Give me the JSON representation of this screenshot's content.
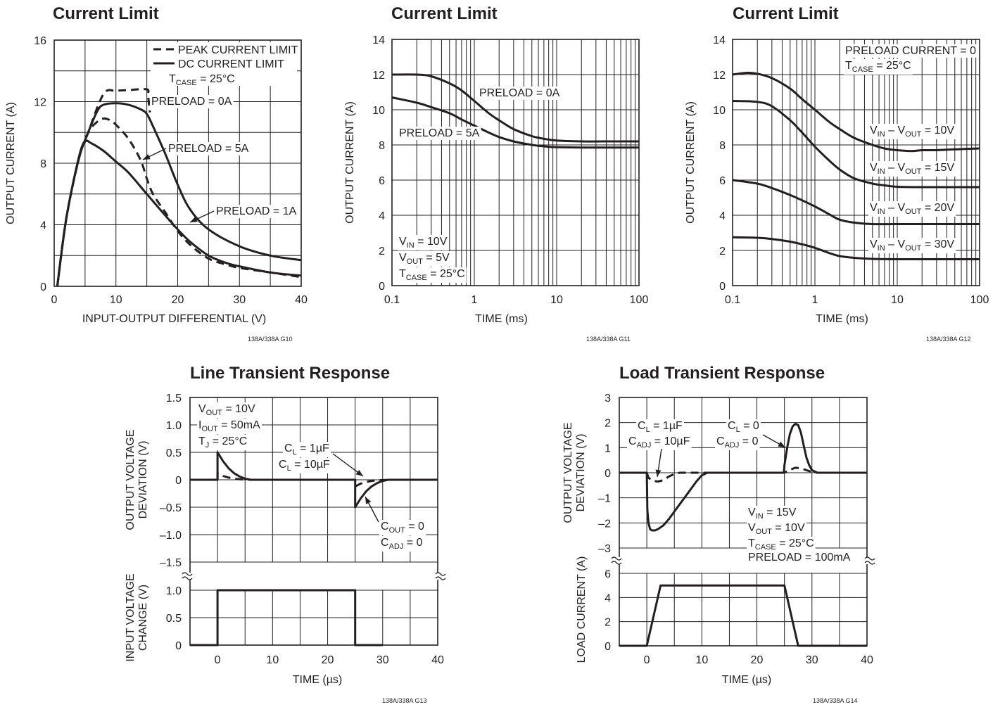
{
  "chart_data": [
    {
      "id": "g10",
      "type": "line",
      "title": "Current Limit",
      "xlabel": "INPUT-OUTPUT DIFFERENTIAL (V)",
      "ylabel": "OUTPUT CURRENT (A)",
      "xlim": [
        0,
        40
      ],
      "ylim": [
        0,
        16
      ],
      "xticks": [
        0,
        10,
        20,
        30,
        40
      ],
      "yticks": [
        0,
        4,
        8,
        12,
        16
      ],
      "x_grid_step": 5,
      "y_grid_step": 2,
      "legend": [
        {
          "label": "PEAK CURRENT LIMIT",
          "style": "dashed"
        },
        {
          "label": "DC CURRENT LIMIT",
          "style": "solid"
        }
      ],
      "annotations": [
        {
          "base": "T",
          "sub": "CASE",
          "tail": " = 25°C"
        },
        {
          "text": "PRELOAD = 0A"
        },
        {
          "text": "PRELOAD = 5A"
        },
        {
          "text": "PRELOAD = 1A"
        }
      ],
      "series": [
        {
          "style": "dashed",
          "x": [
            0.5,
            2,
            4,
            5.5,
            8,
            10,
            12,
            15,
            15.2,
            15.5
          ],
          "y": [
            0,
            4.5,
            8.3,
            10,
            12.5,
            12.7,
            12.75,
            12.8,
            12.4,
            11.3
          ]
        },
        {
          "style": "solid",
          "x": [
            0.5,
            2,
            4,
            5.5,
            7,
            8,
            10,
            12,
            14,
            15,
            16,
            18,
            20,
            22,
            25,
            30,
            35,
            40
          ],
          "y": [
            0,
            4.5,
            8.3,
            10,
            11.4,
            11.8,
            11.9,
            11.8,
            11.5,
            11.2,
            10.4,
            8.6,
            6.6,
            5.0,
            3.7,
            2.6,
            2.0,
            1.7
          ]
        },
        {
          "style": "dashed",
          "x": [
            0.5,
            2,
            4,
            5.5,
            7,
            8,
            9,
            10,
            12,
            14,
            15,
            16,
            18,
            20,
            22,
            25,
            28,
            30,
            35,
            40
          ],
          "y": [
            0,
            4.5,
            8.3,
            10,
            10.7,
            10.9,
            10.8,
            10.5,
            9.6,
            8.2,
            7.0,
            6.0,
            4.8,
            3.6,
            2.7,
            1.8,
            1.4,
            1.2,
            0.9,
            0.6
          ]
        },
        {
          "style": "solid",
          "x": [
            0.5,
            2,
            4,
            5,
            6,
            8,
            10,
            12,
            15,
            18,
            20,
            22,
            25,
            28,
            30,
            35,
            40
          ],
          "y": [
            0,
            4.5,
            8.4,
            9.4,
            9.3,
            8.8,
            8.1,
            7.4,
            6.0,
            4.6,
            3.7,
            2.9,
            2.0,
            1.5,
            1.3,
            0.9,
            0.7
          ]
        }
      ],
      "code": "138A/338A G10"
    },
    {
      "id": "g11",
      "type": "line",
      "title": "Current Limit",
      "xlabel": "TIME (ms)",
      "ylabel": "OUTPUT CURRENT (A)",
      "xscale": "log",
      "xlim": [
        0.1,
        100
      ],
      "ylim": [
        0,
        14
      ],
      "xticks": [
        0.1,
        1,
        10,
        100
      ],
      "yticks": [
        0,
        2,
        4,
        6,
        8,
        10,
        12,
        14
      ],
      "annotations": [
        {
          "text": "PRELOAD = 0A"
        },
        {
          "text": "PRELOAD = 5A"
        },
        {
          "base": "V",
          "sub": "IN",
          "tail": " = 10V"
        },
        {
          "base": "V",
          "sub": "OUT",
          "tail": " = 5V"
        },
        {
          "base": "T",
          "sub": "CASE",
          "tail": " = 25°C"
        }
      ],
      "series": [
        {
          "label": "PRELOAD = 0A",
          "x": [
            0.1,
            0.2,
            0.3,
            0.5,
            0.7,
            1,
            1.5,
            2,
            3,
            5,
            7,
            10,
            20,
            50,
            100
          ],
          "y": [
            12,
            12,
            11.9,
            11.5,
            11.1,
            10.5,
            9.8,
            9.4,
            8.9,
            8.5,
            8.35,
            8.25,
            8.2,
            8.2,
            8.2
          ]
        },
        {
          "label": "PRELOAD = 5A",
          "x": [
            0.1,
            0.2,
            0.3,
            0.5,
            0.7,
            1,
            1.5,
            2,
            3,
            5,
            7,
            10,
            20,
            50,
            100
          ],
          "y": [
            10.7,
            10.4,
            10.15,
            9.8,
            9.45,
            9.1,
            8.7,
            8.45,
            8.2,
            8.0,
            7.92,
            7.87,
            7.85,
            7.85,
            7.85
          ]
        }
      ],
      "code": "138A/338A G11"
    },
    {
      "id": "g12",
      "type": "line",
      "title": "Current Limit",
      "xlabel": "TIME (ms)",
      "ylabel": "OUTPUT CURRENT (A)",
      "xscale": "log",
      "xlim": [
        0.1,
        100
      ],
      "ylim": [
        0,
        14
      ],
      "xticks": [
        0.1,
        1,
        10,
        100
      ],
      "yticks": [
        0,
        2,
        4,
        6,
        8,
        10,
        12,
        14
      ],
      "annotations": [
        {
          "text": "PRELOAD CURRENT = 0"
        },
        {
          "base": "T",
          "sub": "CASE",
          "tail": " = 25°C"
        }
      ],
      "series": [
        {
          "name": {
            "base": "V",
            "sub": "IN",
            "mid": " – V",
            "sub2": "OUT",
            "tail": " = 10V"
          },
          "x": [
            0.1,
            0.15,
            0.2,
            0.3,
            0.5,
            0.7,
            1,
            1.5,
            2,
            3,
            5,
            7,
            10,
            15,
            20,
            30,
            50,
            100
          ],
          "y": [
            12.0,
            12.1,
            12.05,
            11.8,
            11.2,
            10.6,
            10.0,
            9.3,
            8.9,
            8.4,
            8.0,
            7.8,
            7.7,
            7.65,
            7.7,
            7.7,
            7.75,
            7.8
          ]
        },
        {
          "name": {
            "base": "V",
            "sub": "IN",
            "mid": " – V",
            "sub2": "OUT",
            "tail": " = 15V"
          },
          "x": [
            0.1,
            0.2,
            0.3,
            0.5,
            0.7,
            1,
            1.5,
            2,
            3,
            5,
            7,
            10,
            20,
            50,
            100
          ],
          "y": [
            10.5,
            10.45,
            10.2,
            9.4,
            8.7,
            7.9,
            7.1,
            6.6,
            6.1,
            5.8,
            5.7,
            5.62,
            5.6,
            5.6,
            5.6
          ]
        },
        {
          "name": {
            "base": "V",
            "sub": "IN",
            "mid": " – V",
            "sub2": "OUT",
            "tail": " = 20V"
          },
          "x": [
            0.1,
            0.2,
            0.3,
            0.5,
            0.7,
            1,
            1.5,
            2,
            3,
            5,
            10,
            20,
            50,
            100
          ],
          "y": [
            6.0,
            5.8,
            5.55,
            5.15,
            4.85,
            4.5,
            4.05,
            3.75,
            3.58,
            3.5,
            3.5,
            3.5,
            3.5,
            3.5
          ]
        },
        {
          "name": {
            "base": "V",
            "sub": "IN",
            "mid": " – V",
            "sub2": "OUT",
            "tail": " = 30V"
          },
          "x": [
            0.1,
            0.2,
            0.3,
            0.5,
            0.7,
            1,
            1.5,
            2,
            3,
            5,
            10,
            20,
            50,
            100
          ],
          "y": [
            2.75,
            2.72,
            2.65,
            2.5,
            2.35,
            2.15,
            1.85,
            1.68,
            1.58,
            1.52,
            1.5,
            1.5,
            1.5,
            1.5
          ]
        }
      ],
      "code": "138A/338A G12"
    },
    {
      "id": "g13",
      "type": "line",
      "title": "Line Transient Response",
      "xlabel": "TIME (µs)",
      "ylabel_top": [
        "OUTPUT VOLTAGE",
        "DEVIATION (V)"
      ],
      "ylabel_bottom": [
        "INPUT VOLTAGE",
        "CHANGE (V)"
      ],
      "xlim": [
        -5,
        40
      ],
      "xticks": [
        0,
        10,
        20,
        30,
        40
      ],
      "top_yticks": [
        "1.5",
        "1.0",
        "0.5",
        "0",
        "–0.5",
        "–1.0",
        "–1.5"
      ],
      "bottom_yticks": [
        "1.0",
        "0.5",
        "0"
      ],
      "annotations": [
        {
          "base": "V",
          "sub": "OUT",
          "tail": " = 10V"
        },
        {
          "base": "I",
          "sub": "OUT",
          "tail": " = 50mA"
        },
        {
          "base": "T",
          "sub": "J",
          "tail": " = 25°C"
        },
        {
          "base": "C",
          "sub": "L",
          "tail": " = 1µF"
        },
        {
          "base": "C",
          "sub": "L",
          "tail": " = 10µF"
        },
        {
          "base": "C",
          "sub": "OUT",
          "tail": " = 0"
        },
        {
          "base": "C",
          "sub": "ADJ",
          "tail": " = 0"
        }
      ],
      "series": [
        {
          "panel": "top",
          "style": "solid",
          "label": "C_OUT = 0, C_ADJ = 0",
          "x": [
            -5,
            0,
            0,
            1,
            2,
            3,
            4,
            5,
            6,
            25,
            25,
            26,
            27,
            28,
            29,
            30,
            31,
            40
          ],
          "y": [
            0,
            0,
            0.5,
            0.34,
            0.21,
            0.12,
            0.06,
            0.02,
            0,
            0,
            -0.5,
            -0.34,
            -0.21,
            -0.12,
            -0.06,
            -0.02,
            0,
            0
          ]
        },
        {
          "panel": "top",
          "style": "dashed",
          "label": "C_L = 1µF / 10µF",
          "x": [
            0,
            0,
            1,
            2,
            3,
            4,
            6,
            25,
            25,
            26,
            27,
            28,
            29,
            31
          ],
          "y": [
            0,
            0.12,
            0.07,
            0.04,
            0.02,
            0.01,
            0,
            0,
            -0.12,
            -0.07,
            -0.04,
            -0.02,
            -0.01,
            0
          ]
        },
        {
          "panel": "bottom",
          "style": "solid",
          "x": [
            -5,
            0,
            0,
            25,
            25,
            30
          ],
          "y": [
            0,
            0,
            1,
            1,
            0,
            0
          ]
        }
      ],
      "code": "138A/338A G13"
    },
    {
      "id": "g14",
      "type": "line",
      "title": "Load Transient Response",
      "xlabel": "TIME (µs)",
      "ylabel_top": [
        "OUTPUT VOLTAGE",
        "DEVIATION (V)"
      ],
      "ylabel_bottom": [
        "LOAD CURRENT (A)"
      ],
      "xlim": [
        -5,
        40
      ],
      "xticks": [
        0,
        10,
        20,
        30,
        40
      ],
      "top_yticks": [
        "3",
        "2",
        "1",
        "0",
        "–1",
        "–2",
        "–3"
      ],
      "bottom_yticks": [
        "6",
        "4",
        "2",
        "0"
      ],
      "annotations": [
        {
          "base": "C",
          "sub": "L",
          "tail": " = 1µF"
        },
        {
          "base": "C",
          "sub": "ADJ",
          "tail": " = 10µF"
        },
        {
          "base": "C",
          "sub": "L",
          "tail": " = 0"
        },
        {
          "base": "C",
          "sub": "ADJ",
          "tail": " = 0"
        },
        {
          "base": "V",
          "sub": "IN",
          "tail": " = 15V"
        },
        {
          "base": "V",
          "sub": "OUT",
          "tail": " = 10V"
        },
        {
          "base": "T",
          "sub": "CASE",
          "tail": " = 25°C"
        },
        {
          "text": "PRELOAD = 100mA"
        }
      ],
      "series": [
        {
          "panel": "top",
          "style": "solid",
          "label": "C_L = 0, C_ADJ = 0",
          "x": [
            -5,
            0,
            0.1,
            0.3,
            0.6,
            1,
            1.5,
            2,
            3,
            4,
            5,
            6,
            7,
            8,
            9,
            10,
            11,
            24.9,
            25,
            25.5,
            26,
            26.5,
            27,
            27.5,
            28,
            28.5,
            29,
            29.5,
            30,
            31,
            40
          ],
          "y": [
            0,
            0,
            -1.5,
            -2.0,
            -2.25,
            -2.3,
            -2.3,
            -2.25,
            -2.1,
            -1.85,
            -1.55,
            -1.25,
            -0.95,
            -0.65,
            -0.35,
            -0.1,
            0,
            0,
            0.3,
            1.0,
            1.55,
            1.85,
            1.95,
            1.9,
            1.6,
            1.1,
            0.6,
            0.3,
            0.1,
            0,
            0
          ]
        },
        {
          "panel": "top",
          "style": "dashed",
          "label": "C_L = 1µF, C_ADJ = 10µF",
          "x": [
            0,
            0.3,
            1,
            2,
            3,
            4,
            5,
            6,
            25,
            26,
            27,
            28,
            29,
            30,
            31
          ],
          "y": [
            0,
            -0.2,
            -0.32,
            -0.35,
            -0.3,
            -0.15,
            -0.05,
            0,
            0,
            0.12,
            0.2,
            0.18,
            0.1,
            0.03,
            0
          ]
        },
        {
          "panel": "bottom",
          "style": "solid",
          "x": [
            -5,
            0,
            2.5,
            25,
            27.5,
            40
          ],
          "y": [
            0,
            0,
            5,
            5,
            0,
            0
          ]
        }
      ],
      "code": "138A/338A G14"
    }
  ]
}
